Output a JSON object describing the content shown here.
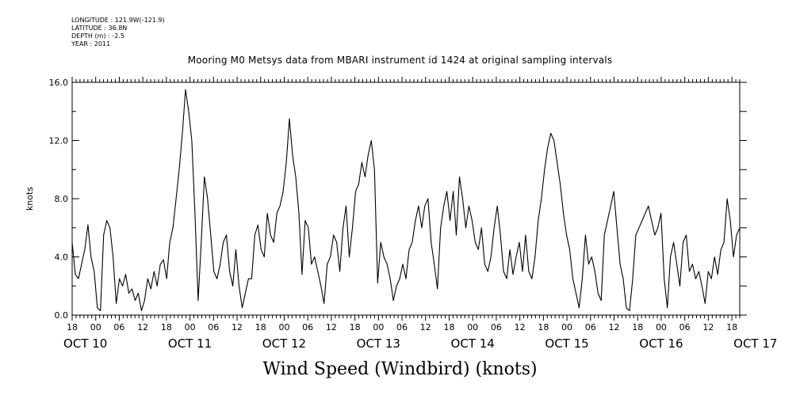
{
  "meta": {
    "longitude": "LONGITUDE : 121.9W(-121.9)",
    "latitude": "LATITUDE : 36.8N",
    "depth": "DEPTH (m) : -2.5",
    "year": "YEAR : 2011"
  },
  "chart_data": {
    "type": "line",
    "title": "Mooring M0 Metsys data from MBARI instrument id 1424 at original sampling intervals",
    "xlabel": "Wind Speed (Windbird) (knots)",
    "ylabel": "knots",
    "ylim": [
      0,
      16
    ],
    "yticks": [
      "0.0",
      "4.0",
      "8.0",
      "12.0",
      "16.0"
    ],
    "xlim_hours": [
      0,
      170
    ],
    "hour_ticks": [
      "18",
      "00",
      "06",
      "12",
      "18",
      "00",
      "06",
      "12",
      "18",
      "00",
      "06",
      "12",
      "18",
      "00",
      "06",
      "12",
      "18",
      "00",
      "06",
      "12",
      "18",
      "00",
      "06",
      "12",
      "18",
      "00",
      "06",
      "12",
      "18"
    ],
    "day_labels": [
      "OCT 10",
      "OCT 11",
      "OCT 12",
      "OCT 13",
      "OCT 14",
      "OCT 15",
      "OCT 16",
      "OCT 17"
    ],
    "grid": false,
    "series": [
      {
        "values": [
          5.0,
          2.8,
          2.5,
          3.5,
          4.5,
          6.2,
          4.0,
          3.0,
          0.5,
          0.3,
          5.5,
          6.5,
          6.0,
          4.0,
          0.8,
          2.5,
          2.0,
          2.8,
          1.5,
          1.8,
          1.0,
          1.5,
          0.3,
          1.0,
          2.5,
          1.8,
          3.0,
          2.0,
          3.5,
          3.8,
          2.5,
          5.0,
          6.0,
          8.0,
          10.0,
          12.5,
          15.5,
          14.0,
          12.0,
          7.0,
          1.0,
          5.0,
          9.5,
          8.0,
          5.5,
          3.0,
          2.5,
          3.5,
          5.0,
          5.5,
          3.0,
          2.0,
          4.5,
          2.0,
          0.5,
          1.5,
          2.5,
          2.5,
          5.5,
          6.2,
          4.5,
          4.0,
          7.0,
          5.5,
          5.0,
          7.0,
          7.5,
          8.5,
          10.5,
          13.5,
          11.0,
          9.5,
          7.0,
          2.8,
          6.5,
          6.0,
          3.5,
          4.0,
          3.0,
          2.0,
          0.8,
          3.5,
          4.0,
          5.5,
          5.0,
          3.0,
          6.0,
          7.5,
          4.0,
          6.0,
          8.5,
          9.0,
          10.5,
          9.5,
          11.0,
          12.0,
          10.0,
          2.2,
          5.0,
          4.0,
          3.5,
          2.5,
          1.0,
          2.0,
          2.5,
          3.5,
          2.5,
          4.5,
          5.0,
          6.5,
          7.5,
          6.0,
          7.5,
          8.0,
          5.0,
          3.5,
          1.8,
          6.0,
          7.5,
          8.5,
          6.5,
          8.5,
          5.5,
          9.5,
          8.0,
          6.0,
          7.5,
          6.5,
          5.0,
          4.5,
          6.0,
          3.5,
          3.0,
          4.0,
          6.0,
          7.5,
          5.5,
          3.0,
          2.5,
          4.5,
          2.8,
          4.0,
          5.0,
          3.0,
          5.5,
          3.0,
          2.5,
          4.0,
          6.5,
          8.0,
          10.0,
          11.5,
          12.5,
          12.0,
          10.5,
          9.0,
          7.0,
          5.5,
          4.5,
          2.5,
          1.5,
          0.5,
          2.5,
          5.5,
          3.5,
          4.0,
          3.0,
          1.5,
          1.0,
          5.5,
          6.5,
          7.5,
          8.5,
          6.0,
          3.5,
          2.5,
          0.5,
          0.3,
          2.5,
          5.5,
          6.0,
          6.5,
          7.0,
          7.5,
          6.5,
          5.5,
          6.0,
          7.0,
          2.5,
          0.5,
          4.0,
          5.0,
          3.5,
          2.0,
          5.0,
          5.5,
          3.0,
          3.5,
          2.5,
          3.0,
          2.0,
          0.8,
          3.0,
          2.5,
          4.0,
          2.8,
          4.5,
          5.0,
          8.0,
          6.5,
          4.0,
          5.5,
          6.0
        ]
      }
    ]
  }
}
